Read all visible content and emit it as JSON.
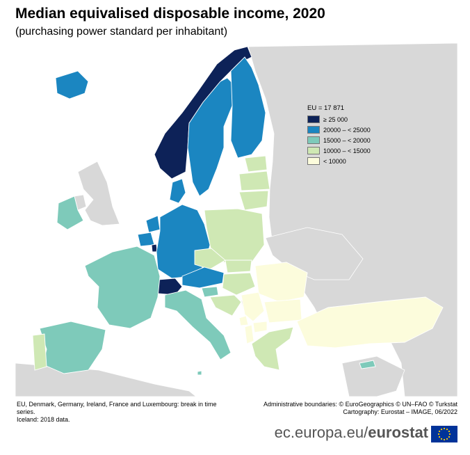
{
  "header": {
    "title": "Median equivalised disposable income, 2020",
    "subtitle": "(purchasing power standard per inhabitant)"
  },
  "legend": {
    "title": "EU = 17 871",
    "classes": [
      {
        "label": "≥ 25 000",
        "color": "#0d2258"
      },
      {
        "label": "20000 – < 25000",
        "color": "#1b86c1"
      },
      {
        "label": "15000 – < 20000",
        "color": "#7ecaba"
      },
      {
        "label": "10000 – < 15000",
        "color": "#cfe8b4"
      },
      {
        "label": "< 10000",
        "color": "#fcfcdc"
      }
    ]
  },
  "map": {
    "sea_color": "#ffffff",
    "no_data_color": "#d8d8d8",
    "countries": [
      {
        "name": "Norway",
        "class": 0
      },
      {
        "name": "Switzerland",
        "class": 0
      },
      {
        "name": "Luxembourg",
        "class": 0
      },
      {
        "name": "Iceland",
        "class": 1
      },
      {
        "name": "Sweden",
        "class": 1
      },
      {
        "name": "Finland",
        "class": 1
      },
      {
        "name": "Denmark",
        "class": 1
      },
      {
        "name": "Germany",
        "class": 1
      },
      {
        "name": "Netherlands",
        "class": 1
      },
      {
        "name": "Belgium",
        "class": 1
      },
      {
        "name": "Austria",
        "class": 1
      },
      {
        "name": "Ireland",
        "class": 2
      },
      {
        "name": "France",
        "class": 2
      },
      {
        "name": "Spain",
        "class": 2
      },
      {
        "name": "Italy",
        "class": 2
      },
      {
        "name": "Slovenia",
        "class": 2
      },
      {
        "name": "Malta",
        "class": 2
      },
      {
        "name": "Cyprus",
        "class": 2
      },
      {
        "name": "Portugal",
        "class": 3
      },
      {
        "name": "Estonia",
        "class": 3
      },
      {
        "name": "Latvia",
        "class": 3
      },
      {
        "name": "Lithuania",
        "class": 3
      },
      {
        "name": "Poland",
        "class": 3
      },
      {
        "name": "Czechia",
        "class": 3
      },
      {
        "name": "Slovakia",
        "class": 3
      },
      {
        "name": "Hungary",
        "class": 3
      },
      {
        "name": "Croatia",
        "class": 3
      },
      {
        "name": "Greece",
        "class": 3
      },
      {
        "name": "Romania",
        "class": 4
      },
      {
        "name": "Bulgaria",
        "class": 4
      },
      {
        "name": "Serbia",
        "class": 4
      },
      {
        "name": "Montenegro",
        "class": 4
      },
      {
        "name": "North Macedonia",
        "class": 4
      },
      {
        "name": "Albania",
        "class": 4
      },
      {
        "name": "Türkiye",
        "class": 4
      }
    ]
  },
  "footnotes": [
    "EU, Denmark, Germany, Ireland, France and Luxembourg: break in time series.",
    "Iceland: 2018 data."
  ],
  "credits": [
    "Administrative boundaries: © EuroGeographics © UN–FAO © Turkstat",
    "Cartography: Eurostat – IMAGE, 06/2022"
  ],
  "branding": {
    "site": "ec.europa.eu/",
    "name": "eurostat"
  }
}
